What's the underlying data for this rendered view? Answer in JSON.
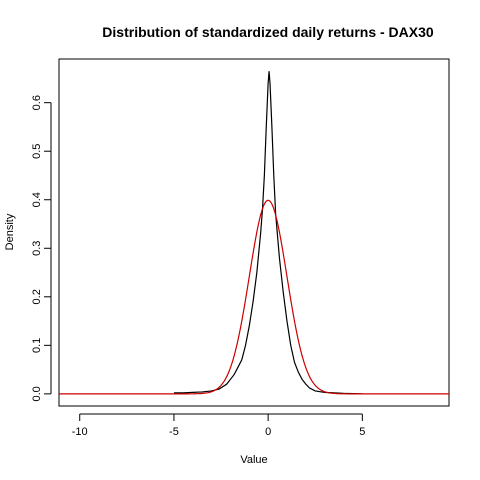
{
  "chart_data": {
    "type": "line",
    "title": "Distribution of standardized daily returns - DAX30",
    "xlabel": "Value",
    "ylabel": "Density",
    "xlim": [
      -11.1,
      9.6
    ],
    "ylim": [
      -0.025,
      0.69
    ],
    "x_ticks": [
      -10,
      -5,
      0,
      5
    ],
    "x_tick_labels": [
      "-10",
      "-5",
      "0",
      "5"
    ],
    "y_ticks": [
      0.0,
      0.1,
      0.2,
      0.3,
      0.4,
      0.5,
      0.6
    ],
    "y_tick_labels": [
      "0.0",
      "0.1",
      "0.2",
      "0.3",
      "0.4",
      "0.5",
      "0.6"
    ],
    "grid": false,
    "legend": "none",
    "series": [
      {
        "color": "#000000",
        "x": [
          -5.0,
          -4.5,
          -4.0,
          -3.5,
          -3.0,
          -2.6,
          -2.2,
          -2.0,
          -1.8,
          -1.6,
          -1.4,
          -1.2,
          -1.0,
          -0.8,
          -0.6,
          -0.4,
          -0.3,
          -0.2,
          -0.1,
          0.0,
          0.05,
          0.1,
          0.2,
          0.3,
          0.4,
          0.6,
          0.8,
          1.0,
          1.2,
          1.4,
          1.6,
          1.8,
          2.0,
          2.2,
          2.5,
          3.0,
          3.5,
          4.0,
          5.0
        ],
        "y": [
          0.002,
          0.002,
          0.003,
          0.004,
          0.006,
          0.01,
          0.02,
          0.03,
          0.04,
          0.055,
          0.07,
          0.1,
          0.14,
          0.19,
          0.25,
          0.33,
          0.38,
          0.45,
          0.55,
          0.64,
          0.665,
          0.64,
          0.55,
          0.45,
          0.37,
          0.28,
          0.21,
          0.15,
          0.1,
          0.065,
          0.045,
          0.03,
          0.02,
          0.012,
          0.006,
          0.003,
          0.002,
          0.001,
          0.0
        ]
      },
      {
        "color": "#cc0000",
        "function": "standard-normal-density",
        "x_range": [
          -11.1,
          9.6
        ],
        "samples": 415
      }
    ]
  }
}
